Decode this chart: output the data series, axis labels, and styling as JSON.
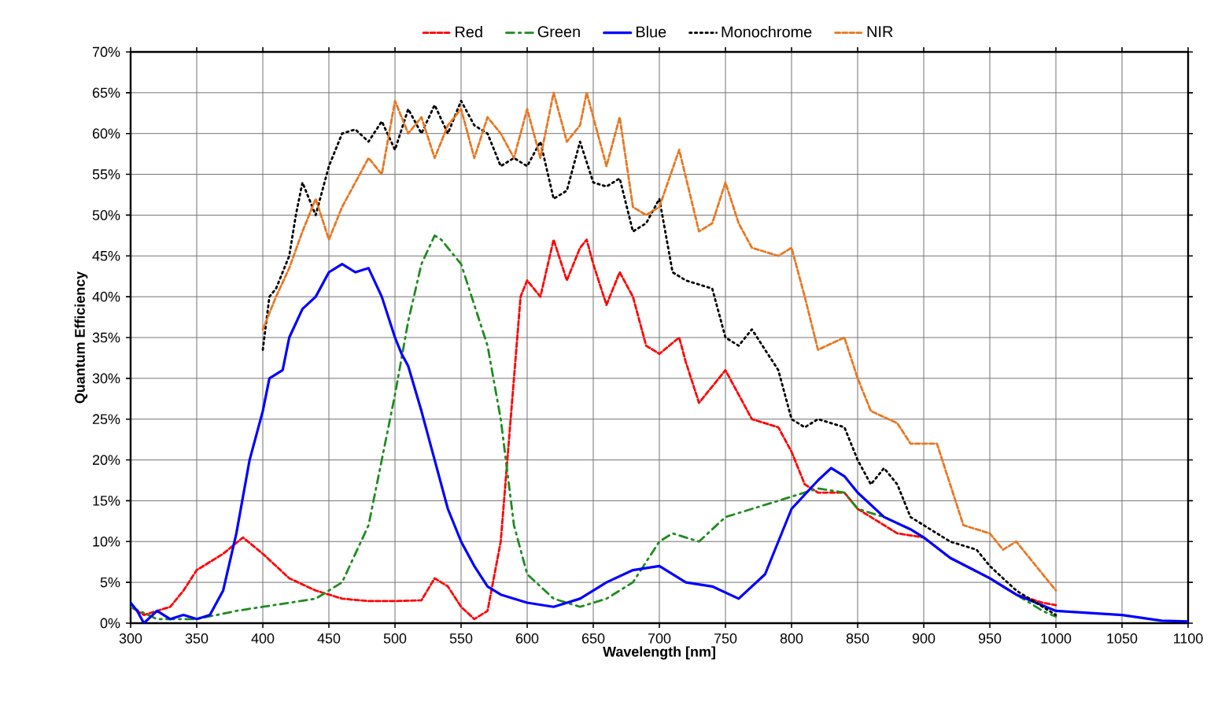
{
  "chart_data": {
    "type": "line",
    "xlabel": "Wavelength [nm]",
    "ylabel": "Quantum Efficiency",
    "xlim": [
      300,
      1100
    ],
    "xticks": [
      300,
      350,
      400,
      450,
      500,
      550,
      600,
      650,
      700,
      750,
      800,
      850,
      900,
      950,
      1000,
      1050,
      1100
    ],
    "ylim": [
      0,
      70
    ],
    "yticks": [
      {
        "value": 0,
        "label": "0%"
      },
      {
        "value": 5,
        "label": "5%"
      },
      {
        "value": 10,
        "label": "10%"
      },
      {
        "value": 15,
        "label": "15%"
      },
      {
        "value": 20,
        "label": "20%"
      },
      {
        "value": 25,
        "label": "25%"
      },
      {
        "value": 30,
        "label": "30%"
      },
      {
        "value": 35,
        "label": "35%"
      },
      {
        "value": 40,
        "label": "40%"
      },
      {
        "value": 45,
        "label": "45%"
      },
      {
        "value": 50,
        "label": "50%"
      },
      {
        "value": 55,
        "label": "55%"
      },
      {
        "value": 60,
        "label": "60%"
      },
      {
        "value": 65,
        "label": "65%"
      },
      {
        "value": 70,
        "label": "70%"
      }
    ],
    "grid": true,
    "legend": "top",
    "marker": "none",
    "series": [
      {
        "name": "Red",
        "color": "#ff0000",
        "line_style": "dashed",
        "x": [
          300,
          310,
          320,
          330,
          340,
          350,
          360,
          370,
          385,
          400,
          420,
          440,
          460,
          480,
          500,
          520,
          530,
          540,
          550,
          560,
          570,
          580,
          590,
          595,
          600,
          610,
          620,
          630,
          640,
          645,
          650,
          660,
          670,
          680,
          690,
          700,
          715,
          720,
          730,
          740,
          750,
          760,
          770,
          790,
          800,
          810,
          820,
          840,
          850,
          880,
          900,
          920,
          950,
          970,
          990,
          1000
        ],
        "values": [
          2,
          1,
          1.5,
          2,
          4,
          6.5,
          7.5,
          8.5,
          10.5,
          8.5,
          5.5,
          4,
          3,
          2.7,
          2.7,
          2.8,
          5.5,
          4.5,
          2,
          0.5,
          1.5,
          10,
          30,
          40,
          42,
          40,
          47,
          42,
          46,
          47,
          44,
          39,
          43,
          40,
          34,
          33,
          35,
          32,
          27,
          29,
          31,
          28,
          25,
          24,
          21,
          17,
          16,
          16,
          14,
          11,
          10.5,
          8,
          5.5,
          3.5,
          2.5,
          2.2
        ]
      },
      {
        "name": "Green",
        "color": "#1e8c1e",
        "line_style": "dashdot",
        "x": [
          300,
          320,
          350,
          380,
          400,
          420,
          440,
          460,
          480,
          500,
          510,
          520,
          530,
          535,
          550,
          570,
          580,
          590,
          600,
          620,
          640,
          660,
          680,
          700,
          710,
          730,
          750,
          770,
          800,
          820,
          840,
          850,
          870,
          890,
          900,
          920,
          950,
          970,
          990,
          1000
        ],
        "values": [
          2,
          0.5,
          0.5,
          1.5,
          2,
          2.5,
          3,
          5,
          12,
          28,
          37,
          44,
          47.5,
          47,
          44,
          34,
          25,
          12,
          6,
          3,
          2,
          3,
          5,
          10,
          11,
          10,
          13,
          14,
          15.5,
          16.5,
          16,
          14,
          13,
          11.5,
          10.5,
          8,
          5.5,
          3.5,
          1.5,
          0.8
        ]
      },
      {
        "name": "Blue",
        "color": "#0000ff",
        "line_style": "solid",
        "x": [
          300,
          305,
          310,
          320,
          330,
          340,
          350,
          360,
          370,
          380,
          390,
          400,
          405,
          415,
          420,
          430,
          440,
          450,
          460,
          470,
          480,
          490,
          500,
          505,
          510,
          520,
          530,
          540,
          550,
          560,
          570,
          580,
          600,
          620,
          640,
          660,
          680,
          700,
          720,
          740,
          760,
          780,
          790,
          800,
          820,
          830,
          840,
          850,
          870,
          890,
          900,
          920,
          950,
          970,
          1000,
          1050,
          1080,
          1100
        ],
        "values": [
          2.5,
          1.5,
          0,
          1.5,
          0.5,
          1,
          0.5,
          1,
          4,
          11,
          20,
          26,
          30,
          31,
          35,
          38.5,
          40,
          43,
          44,
          43,
          43.5,
          40,
          35,
          33,
          31.5,
          26,
          20,
          14,
          10,
          7,
          4.5,
          3.5,
          2.5,
          2,
          3,
          5,
          6.5,
          7,
          5,
          4.5,
          3,
          6,
          10,
          14,
          17.5,
          19,
          18,
          16,
          13,
          11.5,
          10.5,
          8,
          5.5,
          3.5,
          1.5,
          1,
          0.3,
          0.2
        ]
      },
      {
        "name": "Monochrome",
        "color": "#000000",
        "line_style": "dotted",
        "x": [
          400,
          405,
          410,
          420,
          425,
          430,
          440,
          450,
          460,
          470,
          480,
          490,
          500,
          510,
          520,
          530,
          540,
          550,
          560,
          570,
          580,
          590,
          600,
          610,
          620,
          630,
          640,
          650,
          660,
          670,
          680,
          690,
          700,
          710,
          720,
          740,
          750,
          760,
          770,
          790,
          800,
          810,
          820,
          840,
          850,
          860,
          870,
          880,
          890,
          900,
          920,
          940,
          950,
          970,
          1000
        ],
        "values": [
          33.5,
          40,
          41,
          45,
          50,
          54,
          50,
          56,
          60,
          60.5,
          59,
          61.5,
          58,
          63,
          60,
          63.5,
          60,
          64,
          61,
          60,
          56,
          57,
          56,
          59,
          52,
          53,
          59,
          54,
          53.5,
          54.5,
          48,
          49,
          52,
          43,
          42,
          41,
          35,
          34,
          36,
          31,
          25,
          24,
          25,
          24,
          20,
          17,
          19,
          17,
          13,
          12,
          10,
          9,
          7,
          4,
          1
        ]
      },
      {
        "name": "NIR",
        "color": "#e87722",
        "line_style": "dashed",
        "x": [
          400,
          410,
          420,
          430,
          440,
          450,
          460,
          480,
          490,
          500,
          510,
          520,
          530,
          540,
          550,
          560,
          570,
          580,
          590,
          600,
          610,
          620,
          630,
          640,
          645,
          660,
          670,
          680,
          690,
          700,
          715,
          730,
          740,
          750,
          760,
          770,
          790,
          800,
          810,
          820,
          840,
          850,
          860,
          880,
          890,
          910,
          930,
          950,
          960,
          970,
          1000
        ],
        "values": [
          36,
          40,
          43.5,
          48,
          52,
          47,
          51,
          57,
          55,
          64,
          60,
          62,
          57,
          61,
          63,
          57,
          62,
          60,
          57,
          63,
          57,
          65,
          59,
          61,
          65,
          56,
          62,
          51,
          50,
          51,
          58,
          48,
          49,
          54,
          49,
          46,
          45,
          46,
          40,
          33.5,
          35,
          30,
          26,
          24.5,
          22,
          22,
          12,
          11,
          9,
          10,
          4
        ]
      }
    ]
  }
}
